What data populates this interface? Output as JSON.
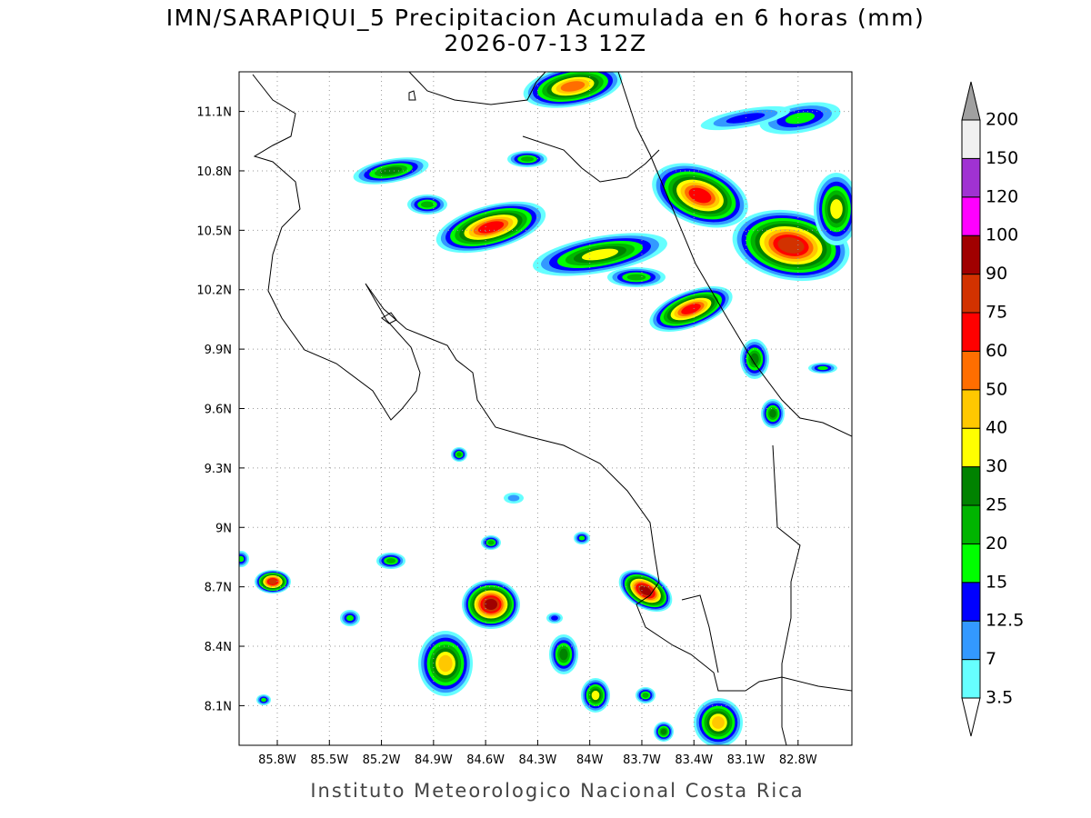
{
  "title": [
    "IMN/SARAPIQUI_5 Precipitacion Acumulada en 6 horas (mm)",
    "2026-07-13 12Z"
  ],
  "map": {
    "xlim": [
      -86.02,
      -82.49
    ],
    "ylim": [
      7.9,
      11.3
    ],
    "xticks": [
      {
        "value": -85.8,
        "label": "85.8W"
      },
      {
        "value": -85.5,
        "label": "85.5W"
      },
      {
        "value": -85.2,
        "label": "85.2W"
      },
      {
        "value": -84.9,
        "label": "84.9W"
      },
      {
        "value": -84.6,
        "label": "84.6W"
      },
      {
        "value": -84.3,
        "label": "84.3W"
      },
      {
        "value": -84.0,
        "label": "84W"
      },
      {
        "value": -83.7,
        "label": "83.7W"
      },
      {
        "value": -83.4,
        "label": "83.4W"
      },
      {
        "value": -83.1,
        "label": "83.1W"
      },
      {
        "value": -82.8,
        "label": "82.8W"
      }
    ],
    "yticks": [
      {
        "value": 8.1,
        "label": "8.1N"
      },
      {
        "value": 8.4,
        "label": "8.4N"
      },
      {
        "value": 8.7,
        "label": "8.7N"
      },
      {
        "value": 9.0,
        "label": "9N"
      },
      {
        "value": 9.3,
        "label": "9.3N"
      },
      {
        "value": 9.6,
        "label": "9.6N"
      },
      {
        "value": 9.9,
        "label": "9.9N"
      },
      {
        "value": 10.2,
        "label": "10.2N"
      },
      {
        "value": 10.5,
        "label": "10.5N"
      },
      {
        "value": 10.8,
        "label": "10.8N"
      },
      {
        "value": 11.1,
        "label": "11.1N"
      }
    ]
  },
  "colorbar": {
    "levels": [
      3.5,
      7,
      12.5,
      15,
      20,
      25,
      30,
      40,
      50,
      60,
      75,
      90,
      100,
      120,
      150,
      200
    ],
    "colors": [
      "#ffffff",
      "#66ffff",
      "#3399ff",
      "#0000ff",
      "#00ff00",
      "#00b400",
      "#008200",
      "#ffff00",
      "#ffc800",
      "#ff6e00",
      "#ff0000",
      "#d23200",
      "#a00000",
      "#ff00ff",
      "#a032d2",
      "#f0f0f0",
      "#a0a0a0"
    ]
  },
  "footer": "Instituto Meteorologico Nacional Costa Rica"
}
